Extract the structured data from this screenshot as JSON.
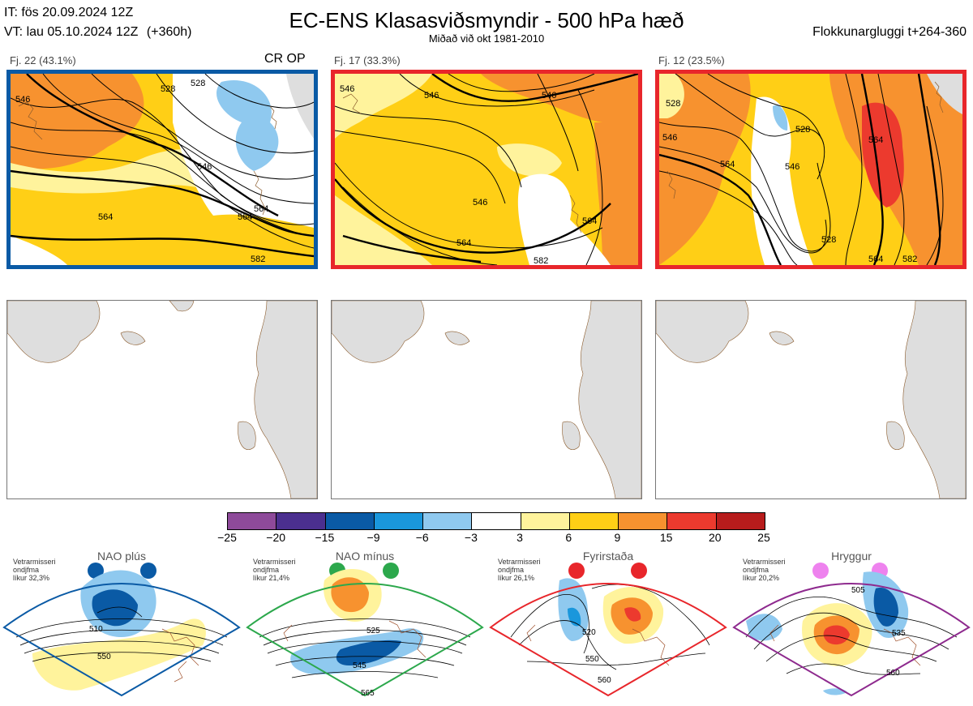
{
  "header": {
    "it": "IT: fös 20.09.2024 12Z",
    "vt_date": "VT: lau 05.10.2024 12Z",
    "vt_lead": "(+360h)",
    "title": "EC-ENS Klasasviðsmyndir - 500 hPa hæð",
    "subtitle": "Miðað við okt 1981-2010",
    "window": "Flokkunargluggi t+264-360"
  },
  "clusters": [
    {
      "label": "Fj. 22 (43.1%)",
      "tag": "CR OP",
      "frame_color": "#0a5aa5",
      "contour_labels": [
        "546",
        "528",
        "528",
        "546",
        "564",
        "564",
        "564",
        "582"
      ]
    },
    {
      "label": "Fj. 17 (33.3%)",
      "tag": "",
      "frame_color": "#e8262b",
      "contour_labels": [
        "546",
        "546",
        "546",
        "546",
        "564",
        "564",
        "582"
      ]
    },
    {
      "label": "Fj. 12 (23.5%)",
      "tag": "",
      "frame_color": "#e8262b",
      "contour_labels": [
        "528",
        "546",
        "528",
        "564",
        "546",
        "564",
        "528",
        "564",
        "582"
      ]
    }
  ],
  "colorbar": {
    "ticks": [
      "−25",
      "−20",
      "−15",
      "−9",
      "−6",
      "−3",
      "3",
      "6",
      "9",
      "15",
      "20",
      "25"
    ],
    "colors": [
      "#8e4a9a",
      "#4b2f8f",
      "#0a5aa5",
      "#1a97dc",
      "#8fc9ef",
      "#ffffff",
      "#fff39c",
      "#ffcf16",
      "#f7922f",
      "#ec3a2e",
      "#b71c1c"
    ]
  },
  "regimes": [
    {
      "name": "NAO plús",
      "info": [
        "Vetrarmisseri",
        "ondjfma",
        "líkur 32,3%"
      ],
      "color": "#0a5aa5",
      "contour_labels": [
        "510",
        "550"
      ]
    },
    {
      "name": "NAO mínus",
      "info": [
        "Vetrarmisseri",
        "ondjfma",
        "líkur 21,4%"
      ],
      "color": "#2ca84c",
      "contour_labels": [
        "525",
        "545",
        "565"
      ]
    },
    {
      "name": "Fyrirstaða",
      "info": [
        "Vetrarmisseri",
        "ondjfma",
        "líkur 26,1%"
      ],
      "color": "#e8262b",
      "contour_labels": [
        "520",
        "550",
        "560"
      ]
    },
    {
      "name": "Hryggur",
      "info": [
        "Vetrarmisseri",
        "ondjfma",
        "líkur 20,2%"
      ],
      "color": "#8e2a8e",
      "contour_labels": [
        "505",
        "535",
        "560"
      ]
    }
  ]
}
